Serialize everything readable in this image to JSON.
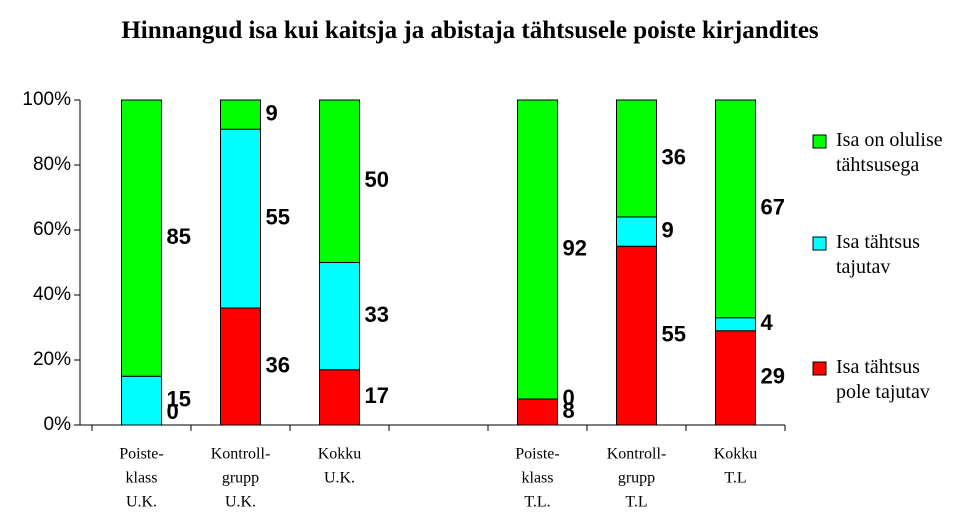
{
  "chart_data": {
    "type": "stacked_bar",
    "title": "Hinnangud isa kui kaitsja ja abistaja tähtsusele poiste kirjandites",
    "categories": [
      [
        "Poiste-",
        "klass",
        "U.K."
      ],
      [
        "Kontroll-",
        "grupp",
        "U.K."
      ],
      [
        "Kokku",
        "U.K."
      ],
      null,
      [
        "Poiste-",
        "klass",
        "T.L."
      ],
      [
        "Kontroll-",
        "grupp",
        "T.L"
      ],
      [
        "Kokku",
        "T.L"
      ]
    ],
    "series": [
      {
        "name": "Isa tähtsus pole tajutav",
        "color": "#ff0000",
        "values": [
          0,
          36,
          17,
          null,
          8,
          55,
          29
        ]
      },
      {
        "name": "Isa tähtsus tajutav",
        "color": "#00ffff",
        "values": [
          15,
          55,
          33,
          null,
          0,
          9,
          4
        ]
      },
      {
        "name": "Isa on olulise tähtsusega",
        "color": "#00ff00",
        "values": [
          85,
          9,
          50,
          null,
          92,
          36,
          67
        ]
      }
    ],
    "ylim": [
      0,
      100
    ],
    "yticks": [
      {
        "value": 0,
        "label": "0%"
      },
      {
        "value": 20,
        "label": "20%"
      },
      {
        "value": 40,
        "label": "40%"
      },
      {
        "value": 60,
        "label": "60%"
      },
      {
        "value": 80,
        "label": "80%"
      },
      {
        "value": 100,
        "label": "100%"
      }
    ]
  }
}
